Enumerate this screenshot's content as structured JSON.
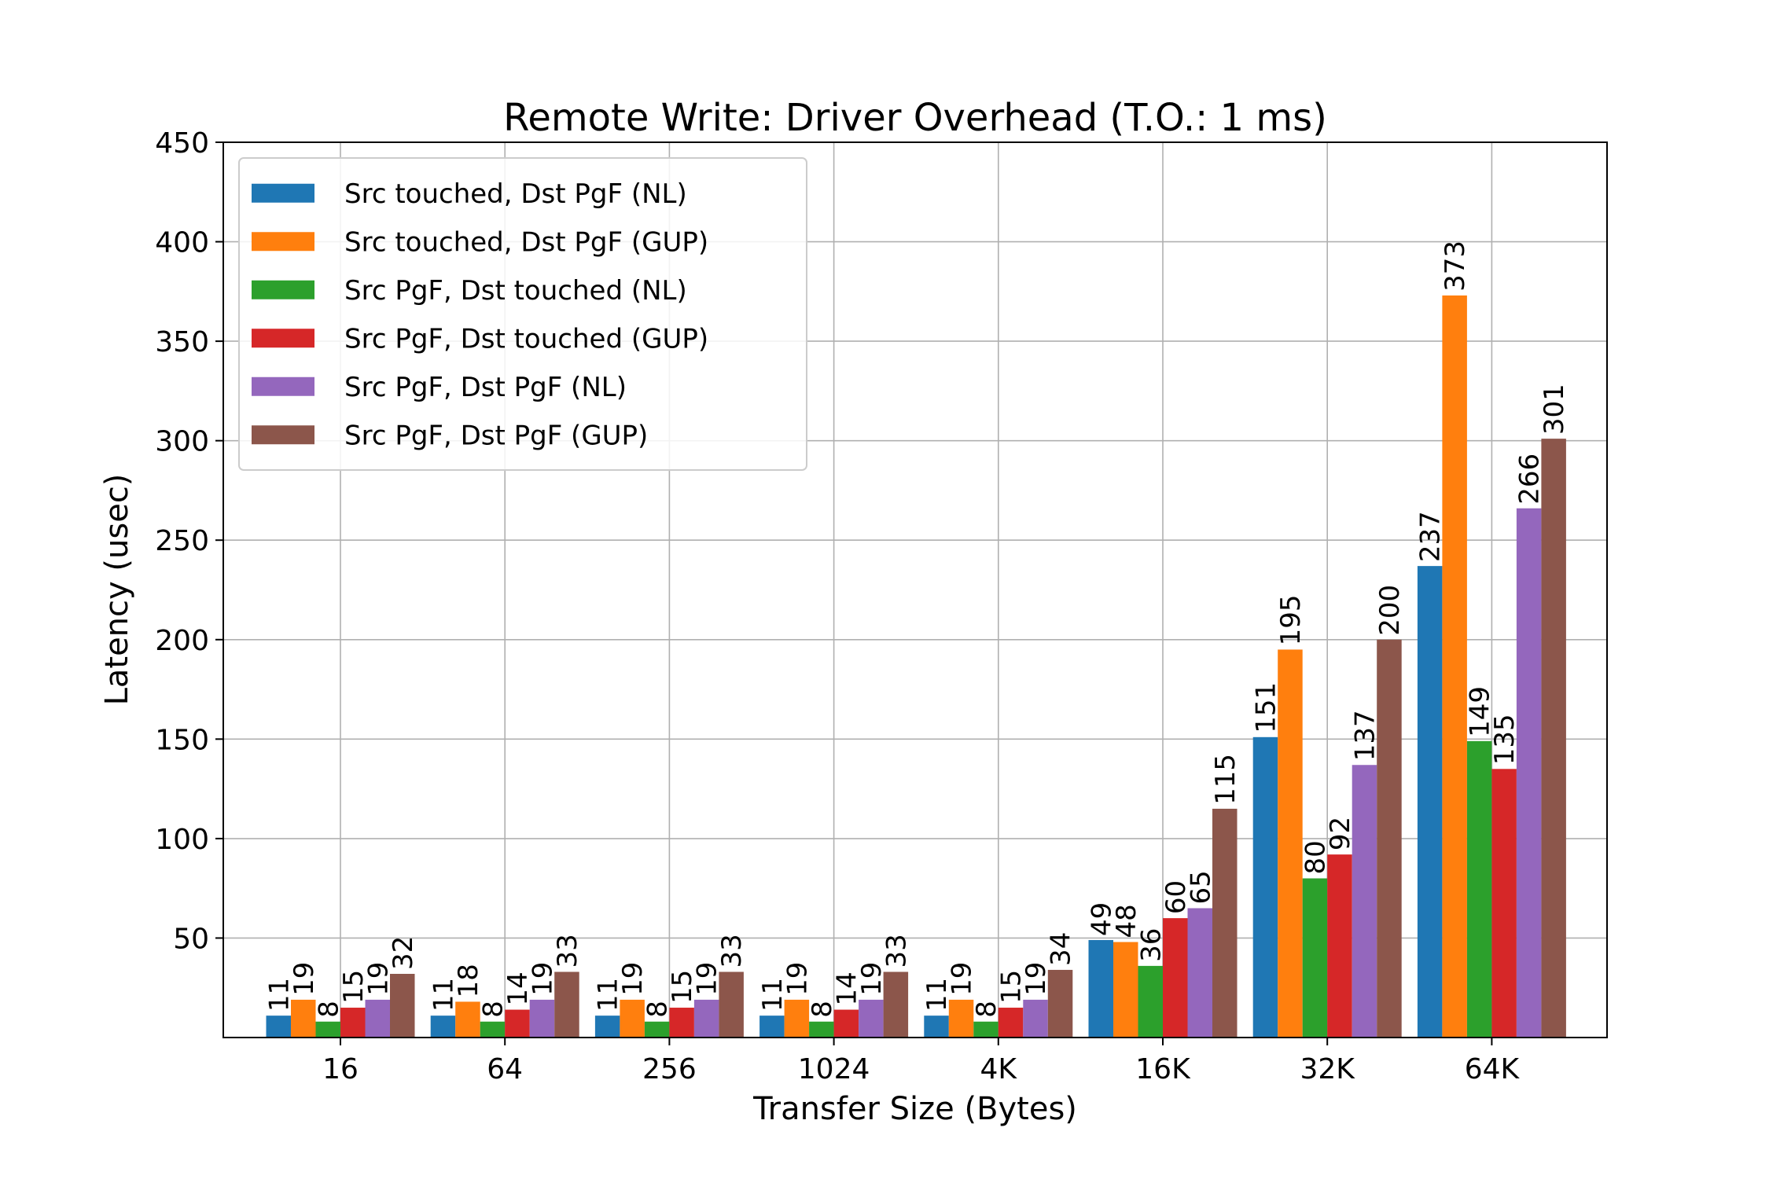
{
  "chart_data": {
    "type": "bar",
    "title": "Remote Write: Driver Overhead (T.O.: 1 ms)",
    "xlabel": "Transfer Size (Bytes)",
    "ylabel": "Latency (usec)",
    "ylim": [
      0,
      450
    ],
    "yticks": [
      50,
      100,
      150,
      200,
      250,
      300,
      350,
      400,
      450
    ],
    "grid": true,
    "legend_position": "top-left",
    "categories": [
      "16",
      "64",
      "256",
      "1024",
      "4K",
      "16K",
      "32K",
      "64K"
    ],
    "series": [
      {
        "name": "Src touched, Dst PgF (NL)",
        "color": "#1f77b4",
        "values": [
          11,
          11,
          11,
          11,
          11,
          49,
          151,
          237
        ]
      },
      {
        "name": "Src touched, Dst PgF (GUP)",
        "color": "#ff7f0e",
        "values": [
          19,
          18,
          19,
          19,
          19,
          48,
          195,
          373
        ]
      },
      {
        "name": "Src PgF, Dst touched (NL)",
        "color": "#2ca02c",
        "values": [
          8,
          8,
          8,
          8,
          8,
          36,
          80,
          149
        ]
      },
      {
        "name": "Src PgF, Dst touched (GUP)",
        "color": "#d62728",
        "values": [
          15,
          14,
          15,
          14,
          15,
          60,
          92,
          135
        ]
      },
      {
        "name": "Src PgF, Dst PgF (NL)",
        "color": "#9467bd",
        "values": [
          19,
          19,
          19,
          19,
          19,
          65,
          137,
          266
        ]
      },
      {
        "name": "Src PgF, Dst PgF (GUP)",
        "color": "#8c564b",
        "values": [
          32,
          33,
          33,
          33,
          34,
          115,
          200,
          301
        ]
      }
    ]
  }
}
